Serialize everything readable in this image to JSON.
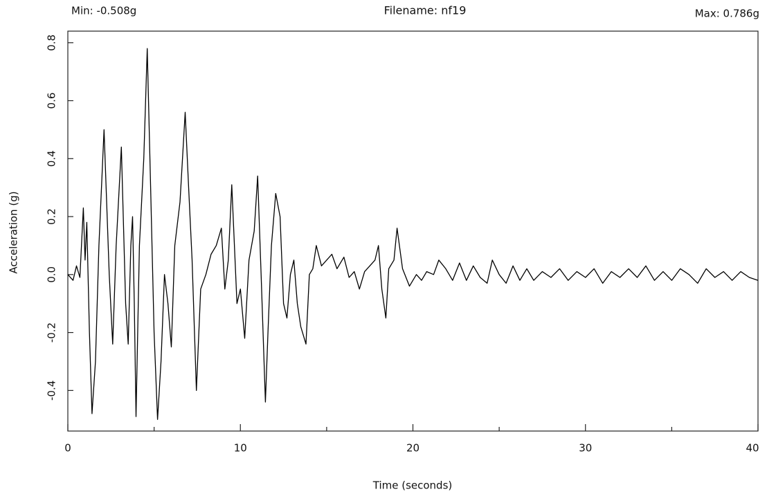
{
  "chart_data": {
    "type": "line",
    "title": "Filename: nf19",
    "min_label": "Min: -0.508g",
    "max_label": "Max: 0.786g",
    "x_label": "Time (seconds)",
    "y_label": "Acceleration (g)",
    "color": "#000000",
    "grid": false,
    "xlim": [
      0,
      40
    ],
    "ylim": [
      -0.54,
      0.84
    ],
    "xticks": [
      0,
      10,
      20,
      30,
      40
    ],
    "xminor_ticks": [
      5,
      15,
      25,
      35
    ],
    "yticks": [
      -0.4,
      -0.2,
      {
        "value": 0,
        "label": "0.0"
      },
      0.2,
      0.4,
      0.6,
      0.8
    ],
    "x": [
      0,
      0.3,
      0.5,
      0.7,
      0.9,
      1.0,
      1.1,
      1.25,
      1.4,
      1.6,
      1.8,
      2.1,
      2.4,
      2.6,
      2.8,
      3.1,
      3.35,
      3.5,
      3.65,
      3.75,
      3.85,
      3.95,
      4.15,
      4.4,
      4.6,
      4.8,
      5.0,
      5.2,
      5.4,
      5.6,
      5.8,
      6.0,
      6.2,
      6.5,
      6.8,
      7.0,
      7.2,
      7.45,
      7.7,
      8.0,
      8.3,
      8.6,
      8.9,
      9.1,
      9.3,
      9.5,
      9.8,
      10.0,
      10.25,
      10.5,
      10.8,
      11.0,
      11.2,
      11.45,
      11.6,
      11.8,
      12.05,
      12.3,
      12.5,
      12.7,
      12.9,
      13.1,
      13.3,
      13.5,
      13.8,
      14.0,
      14.2,
      14.4,
      14.7,
      15.0,
      15.3,
      15.6,
      16.0,
      16.3,
      16.6,
      16.9,
      17.2,
      17.5,
      17.8,
      18.0,
      18.2,
      18.43,
      18.6,
      18.9,
      19.08,
      19.4,
      19.8,
      20.2,
      20.5,
      20.8,
      21.2,
      21.5,
      21.9,
      22.3,
      22.7,
      23.1,
      23.5,
      23.9,
      24.3,
      24.6,
      25.0,
      25.4,
      25.8,
      26.2,
      26.6,
      27.0,
      27.5,
      28.0,
      28.5,
      29.0,
      29.5,
      30.0,
      30.5,
      31.0,
      31.5,
      32.0,
      32.5,
      33.0,
      33.5,
      34.0,
      34.5,
      35.0,
      35.5,
      36.0,
      36.5,
      37.0,
      37.5,
      38.0,
      38.5,
      39.0,
      39.5,
      40.0
    ],
    "values": [
      0.0,
      -0.02,
      0.03,
      -0.01,
      0.23,
      0.05,
      0.18,
      -0.2,
      -0.48,
      -0.3,
      0.1,
      0.5,
      0.0,
      -0.24,
      0.1,
      0.44,
      -0.1,
      -0.24,
      0.1,
      0.2,
      -0.1,
      -0.49,
      0.1,
      0.4,
      0.78,
      0.3,
      -0.2,
      -0.5,
      -0.3,
      0.0,
      -0.1,
      -0.25,
      0.1,
      0.25,
      0.56,
      0.3,
      0.05,
      -0.4,
      -0.05,
      0.0,
      0.07,
      0.1,
      0.16,
      -0.05,
      0.05,
      0.31,
      -0.1,
      -0.05,
      -0.22,
      0.05,
      0.15,
      0.34,
      0.0,
      -0.44,
      -0.2,
      0.1,
      0.28,
      0.2,
      -0.1,
      -0.15,
      0.0,
      0.05,
      -0.1,
      -0.18,
      -0.24,
      0.0,
      0.02,
      0.1,
      0.03,
      0.05,
      0.07,
      0.02,
      0.06,
      -0.01,
      0.01,
      -0.05,
      0.01,
      0.03,
      0.05,
      0.1,
      -0.05,
      -0.15,
      0.02,
      0.05,
      0.16,
      0.02,
      -0.04,
      0.0,
      -0.02,
      0.01,
      0.0,
      0.05,
      0.02,
      -0.02,
      0.04,
      -0.02,
      0.03,
      -0.01,
      -0.03,
      0.05,
      0.0,
      -0.03,
      0.03,
      -0.02,
      0.02,
      -0.02,
      0.01,
      -0.01,
      0.02,
      -0.02,
      0.01,
      -0.01,
      0.02,
      -0.03,
      0.01,
      -0.01,
      0.02,
      -0.01,
      0.03,
      -0.02,
      0.01,
      -0.02,
      0.02,
      0.0,
      -0.03,
      0.02,
      -0.01,
      0.01,
      -0.02,
      0.01,
      -0.01,
      -0.02
    ]
  }
}
